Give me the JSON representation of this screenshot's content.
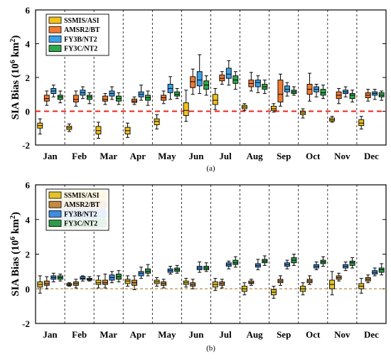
{
  "chart_data": [
    {
      "type": "box",
      "caption": "(a)",
      "ylabel": "SIA Bias (10⁶ km²)",
      "ylabel_main": "SIA Bias (10",
      "ylabel_sup": "6",
      "ylabel_unit": " km",
      "ylabel_sup2": "2",
      "ylabel_close": ")",
      "ylim": [
        -2,
        6
      ],
      "yticks": [
        "-2",
        "0",
        "2",
        "4",
        "6"
      ],
      "categories": [
        "Jan",
        "Feb",
        "Mar",
        "Apr",
        "May",
        "Jun",
        "Jul",
        "Aug",
        "Sep",
        "Oct",
        "Nov",
        "Dec"
      ],
      "legend_position": "top-left",
      "series": [
        {
          "name": "SSMIS/ASI",
          "color": "#f2c21b",
          "boxes": [
            {
              "min": -1.35,
              "q1": -1.0,
              "median": -0.85,
              "q3": -0.7,
              "max": -0.45
            },
            {
              "min": -1.2,
              "q1": -1.08,
              "median": -0.98,
              "q3": -0.88,
              "max": -0.75
            },
            {
              "min": -1.6,
              "q1": -1.35,
              "median": -1.15,
              "q3": -0.9,
              "max": -0.65
            },
            {
              "min": -1.55,
              "q1": -1.35,
              "median": -1.15,
              "q3": -0.95,
              "max": -0.7
            },
            {
              "min": -1.05,
              "q1": -0.8,
              "median": -0.6,
              "q3": -0.45,
              "max": -0.2
            },
            {
              "min": -0.6,
              "q1": -0.25,
              "median": 0.05,
              "q3": 0.5,
              "max": 1.25
            },
            {
              "min": 0.1,
              "q1": 0.4,
              "median": 0.65,
              "q3": 1.0,
              "max": 1.35
            },
            {
              "min": 0.05,
              "q1": 0.15,
              "median": 0.25,
              "q3": 0.35,
              "max": 0.45
            },
            {
              "min": -0.05,
              "q1": 0.05,
              "median": 0.15,
              "q3": 0.3,
              "max": 0.45
            },
            {
              "min": -0.4,
              "q1": -0.2,
              "median": -0.1,
              "q3": 0.0,
              "max": 0.15
            },
            {
              "min": -0.65,
              "q1": -0.58,
              "median": -0.5,
              "q3": -0.4,
              "max": -0.3
            },
            {
              "min": -1.05,
              "q1": -0.85,
              "median": -0.7,
              "q3": -0.5,
              "max": -0.3
            }
          ]
        },
        {
          "name": "AMSR2/BT",
          "color": "#f07a30",
          "boxes": [
            {
              "min": 0.35,
              "q1": 0.6,
              "median": 0.75,
              "q3": 0.95,
              "max": 1.2
            },
            {
              "min": 0.3,
              "q1": 0.55,
              "median": 0.7,
              "q3": 0.95,
              "max": 1.2
            },
            {
              "min": 0.4,
              "q1": 0.6,
              "median": 0.7,
              "q3": 0.9,
              "max": 1.05
            },
            {
              "min": 0.4,
              "q1": 0.52,
              "median": 0.6,
              "q3": 0.72,
              "max": 0.85
            },
            {
              "min": 0.45,
              "q1": 0.65,
              "median": 0.8,
              "q3": 0.95,
              "max": 1.2
            },
            {
              "min": 1.0,
              "q1": 1.4,
              "median": 1.75,
              "q3": 2.05,
              "max": 2.5
            },
            {
              "min": 1.6,
              "q1": 1.8,
              "median": 1.95,
              "q3": 2.15,
              "max": 2.35
            },
            {
              "min": 1.2,
              "q1": 1.45,
              "median": 1.65,
              "q3": 1.85,
              "max": 2.3
            },
            {
              "min": 0.3,
              "q1": 0.55,
              "median": 1.0,
              "q3": 1.85,
              "max": 2.2
            },
            {
              "min": 0.6,
              "q1": 1.0,
              "median": 1.3,
              "q3": 1.6,
              "max": 2.25
            },
            {
              "min": 0.45,
              "q1": 0.75,
              "median": 0.95,
              "q3": 1.15,
              "max": 1.35
            },
            {
              "min": 0.6,
              "q1": 0.8,
              "median": 0.95,
              "q3": 1.1,
              "max": 1.3
            }
          ]
        },
        {
          "name": "FY3B/NT2",
          "color": "#3aa0e8",
          "boxes": [
            {
              "min": 0.85,
              "q1": 1.05,
              "median": 1.2,
              "q3": 1.35,
              "max": 1.55
            },
            {
              "min": 0.75,
              "q1": 0.95,
              "median": 1.1,
              "q3": 1.25,
              "max": 1.45
            },
            {
              "min": 0.7,
              "q1": 0.9,
              "median": 1.05,
              "q3": 1.2,
              "max": 1.45
            },
            {
              "min": 0.65,
              "q1": 0.85,
              "median": 1.0,
              "q3": 1.15,
              "max": 1.55
            },
            {
              "min": 0.7,
              "q1": 1.1,
              "median": 1.35,
              "q3": 1.6,
              "max": 2.05
            },
            {
              "min": 1.05,
              "q1": 1.5,
              "median": 1.85,
              "q3": 2.35,
              "max": 3.35
            },
            {
              "min": 1.55,
              "q1": 1.95,
              "median": 2.2,
              "q3": 2.55,
              "max": 3.0
            },
            {
              "min": 1.1,
              "q1": 1.45,
              "median": 1.7,
              "q3": 1.85,
              "max": 2.1
            },
            {
              "min": 0.9,
              "q1": 1.15,
              "median": 1.3,
              "q3": 1.5,
              "max": 1.7
            },
            {
              "min": 0.85,
              "q1": 1.15,
              "median": 1.3,
              "q3": 1.45,
              "max": 1.6
            },
            {
              "min": 0.85,
              "q1": 1.05,
              "median": 1.15,
              "q3": 1.25,
              "max": 1.45
            },
            {
              "min": 0.7,
              "q1": 0.95,
              "median": 1.05,
              "q3": 1.15,
              "max": 1.3
            }
          ]
        },
        {
          "name": "FY3C/NT2",
          "color": "#2ea84a",
          "boxes": [
            {
              "min": 0.5,
              "q1": 0.7,
              "median": 0.85,
              "q3": 0.95,
              "max": 1.2
            },
            {
              "min": 0.45,
              "q1": 0.7,
              "median": 0.85,
              "q3": 0.95,
              "max": 1.1
            },
            {
              "min": 0.4,
              "q1": 0.6,
              "median": 0.75,
              "q3": 0.9,
              "max": 1.1
            },
            {
              "min": 0.35,
              "q1": 0.65,
              "median": 0.8,
              "q3": 0.95,
              "max": 1.2
            },
            {
              "min": 0.75,
              "q1": 0.9,
              "median": 1.0,
              "q3": 1.15,
              "max": 1.35
            },
            {
              "min": 0.95,
              "q1": 1.3,
              "median": 1.55,
              "q3": 1.8,
              "max": 2.1
            },
            {
              "min": 1.3,
              "q1": 1.65,
              "median": 1.85,
              "q3": 2.1,
              "max": 2.35
            },
            {
              "min": 1.05,
              "q1": 1.3,
              "median": 1.45,
              "q3": 1.6,
              "max": 1.85
            },
            {
              "min": 0.95,
              "q1": 1.05,
              "median": 1.15,
              "q3": 1.25,
              "max": 1.45
            },
            {
              "min": 0.75,
              "q1": 0.95,
              "median": 1.1,
              "q3": 1.3,
              "max": 1.55
            },
            {
              "min": 0.55,
              "q1": 0.75,
              "median": 0.95,
              "q3": 1.05,
              "max": 1.25
            },
            {
              "min": 0.65,
              "q1": 0.85,
              "median": 0.95,
              "q3": 1.1,
              "max": 1.2
            }
          ]
        }
      ],
      "reference_line": {
        "y": 0,
        "color": "#e8231a",
        "style": "dashed"
      },
      "grid": false
    },
    {
      "type": "box",
      "caption": "(b)",
      "ylabel": "SIA Bias (10⁶ km²)",
      "ylabel_main": "SIA Bias (10",
      "ylabel_sup": "6",
      "ylabel_unit": " km",
      "ylabel_sup2": "2",
      "ylabel_close": ")",
      "ylim": [
        -2,
        6
      ],
      "yticks": [
        "-2",
        "0",
        "2",
        "4",
        "6"
      ],
      "categories": [
        "Jan",
        "Feb",
        "Mar",
        "Apr",
        "May",
        "Jun",
        "Jul",
        "Aug",
        "Sep",
        "Oct",
        "Nov",
        "Dec"
      ],
      "legend_position": "top-left",
      "series": [
        {
          "name": "SSMIS/ASI",
          "color": "#e3c22a",
          "boxes": [
            {
              "min": -0.25,
              "q1": 0.1,
              "median": 0.25,
              "q3": 0.4,
              "max": 0.75
            },
            {
              "min": 0.15,
              "q1": 0.2,
              "median": 0.25,
              "q3": 0.3,
              "max": 0.35
            },
            {
              "min": 0.05,
              "q1": 0.25,
              "median": 0.35,
              "q3": 0.5,
              "max": 0.75
            },
            {
              "min": 0.15,
              "q1": 0.3,
              "median": 0.45,
              "q3": 0.55,
              "max": 0.75
            },
            {
              "min": 0.15,
              "q1": 0.3,
              "median": 0.4,
              "q3": 0.5,
              "max": 0.65
            },
            {
              "min": 0.1,
              "q1": 0.25,
              "median": 0.35,
              "q3": 0.45,
              "max": 0.6
            },
            {
              "min": -0.1,
              "q1": 0.1,
              "median": 0.25,
              "q3": 0.4,
              "max": 0.6
            },
            {
              "min": -0.35,
              "q1": -0.15,
              "median": 0.0,
              "q3": 0.15,
              "max": 0.35
            },
            {
              "min": -0.55,
              "q1": -0.35,
              "median": -0.2,
              "q3": -0.05,
              "max": 0.15
            },
            {
              "min": -0.35,
              "q1": -0.15,
              "median": 0.0,
              "q3": 0.15,
              "max": 0.35
            },
            {
              "min": -0.35,
              "q1": 0.0,
              "median": 0.25,
              "q3": 0.5,
              "max": 1.0
            },
            {
              "min": -0.25,
              "q1": 0.0,
              "median": 0.15,
              "q3": 0.3,
              "max": 0.6
            }
          ]
        },
        {
          "name": "AMSR2/BT",
          "color": "#c48a3e",
          "boxes": [
            {
              "min": 0.0,
              "q1": 0.2,
              "median": 0.3,
              "q3": 0.45,
              "max": 0.7
            },
            {
              "min": 0.05,
              "q1": 0.2,
              "median": 0.3,
              "q3": 0.4,
              "max": 0.55
            },
            {
              "min": 0.05,
              "q1": 0.25,
              "median": 0.35,
              "q3": 0.5,
              "max": 0.85
            },
            {
              "min": -0.05,
              "q1": 0.2,
              "median": 0.35,
              "q3": 0.5,
              "max": 0.75
            },
            {
              "min": 0.05,
              "q1": 0.2,
              "median": 0.3,
              "q3": 0.4,
              "max": 0.55
            },
            {
              "min": 0.0,
              "q1": 0.15,
              "median": 0.25,
              "q3": 0.35,
              "max": 0.55
            },
            {
              "min": 0.05,
              "q1": 0.2,
              "median": 0.3,
              "q3": 0.4,
              "max": 0.55
            },
            {
              "min": 0.2,
              "q1": 0.3,
              "median": 0.35,
              "q3": 0.45,
              "max": 0.55
            },
            {
              "min": 0.2,
              "q1": 0.35,
              "median": 0.45,
              "q3": 0.55,
              "max": 0.75
            },
            {
              "min": 0.25,
              "q1": 0.35,
              "median": 0.45,
              "q3": 0.55,
              "max": 0.75
            },
            {
              "min": 0.45,
              "q1": 0.55,
              "median": 0.65,
              "q3": 0.75,
              "max": 0.9
            },
            {
              "min": 0.35,
              "q1": 0.45,
              "median": 0.55,
              "q3": 0.65,
              "max": 0.8
            }
          ]
        },
        {
          "name": "FY3B/NT2",
          "color": "#3e8ee0",
          "boxes": [
            {
              "min": 0.4,
              "q1": 0.55,
              "median": 0.65,
              "q3": 0.75,
              "max": 0.9
            },
            {
              "min": 0.45,
              "q1": 0.55,
              "median": 0.6,
              "q3": 0.7,
              "max": 0.75
            },
            {
              "min": 0.35,
              "q1": 0.5,
              "median": 0.65,
              "q3": 0.8,
              "max": 1.0
            },
            {
              "min": 0.6,
              "q1": 0.75,
              "median": 0.9,
              "q3": 1.0,
              "max": 1.25
            },
            {
              "min": 0.85,
              "q1": 0.95,
              "median": 1.05,
              "q3": 1.15,
              "max": 1.3
            },
            {
              "min": 0.95,
              "q1": 1.1,
              "median": 1.2,
              "q3": 1.3,
              "max": 1.55
            },
            {
              "min": 1.15,
              "q1": 1.3,
              "median": 1.4,
              "q3": 1.5,
              "max": 1.6
            },
            {
              "min": 1.1,
              "q1": 1.25,
              "median": 1.35,
              "q3": 1.45,
              "max": 1.7
            },
            {
              "min": 1.15,
              "q1": 1.3,
              "median": 1.4,
              "q3": 1.5,
              "max": 1.65
            },
            {
              "min": 1.1,
              "q1": 1.2,
              "median": 1.3,
              "q3": 1.4,
              "max": 1.55
            },
            {
              "min": 1.05,
              "q1": 1.2,
              "median": 1.3,
              "q3": 1.4,
              "max": 1.55
            },
            {
              "min": 0.75,
              "q1": 0.85,
              "median": 0.95,
              "q3": 1.05,
              "max": 1.2
            }
          ]
        },
        {
          "name": "FY3C/NT2",
          "color": "#2e9a48",
          "boxes": [
            {
              "min": 0.45,
              "q1": 0.55,
              "median": 0.65,
              "q3": 0.75,
              "max": 0.85
            },
            {
              "min": 0.45,
              "q1": 0.5,
              "median": 0.55,
              "q3": 0.6,
              "max": 0.7
            },
            {
              "min": 0.4,
              "q1": 0.55,
              "median": 0.7,
              "q3": 0.85,
              "max": 1.05
            },
            {
              "min": 0.75,
              "q1": 0.9,
              "median": 1.0,
              "q3": 1.15,
              "max": 1.4
            },
            {
              "min": 0.9,
              "q1": 1.0,
              "median": 1.1,
              "q3": 1.2,
              "max": 1.35
            },
            {
              "min": 1.0,
              "q1": 1.1,
              "median": 1.2,
              "q3": 1.3,
              "max": 1.5
            },
            {
              "min": 1.25,
              "q1": 1.4,
              "median": 1.5,
              "q3": 1.65,
              "max": 1.85
            },
            {
              "min": 1.35,
              "q1": 1.5,
              "median": 1.6,
              "q3": 1.7,
              "max": 1.9
            },
            {
              "min": 1.35,
              "q1": 1.5,
              "median": 1.65,
              "q3": 1.8,
              "max": 2.0
            },
            {
              "min": 1.3,
              "q1": 1.45,
              "median": 1.55,
              "q3": 1.65,
              "max": 1.85
            },
            {
              "min": 1.2,
              "q1": 1.35,
              "median": 1.5,
              "q3": 1.6,
              "max": 1.8
            },
            {
              "min": 0.8,
              "q1": 0.95,
              "median": 1.1,
              "q3": 1.2,
              "max": 1.45
            }
          ]
        }
      ],
      "reference_line": {
        "y": 0,
        "color": "#b88a4a",
        "style": "dashed"
      },
      "grid": false
    }
  ]
}
